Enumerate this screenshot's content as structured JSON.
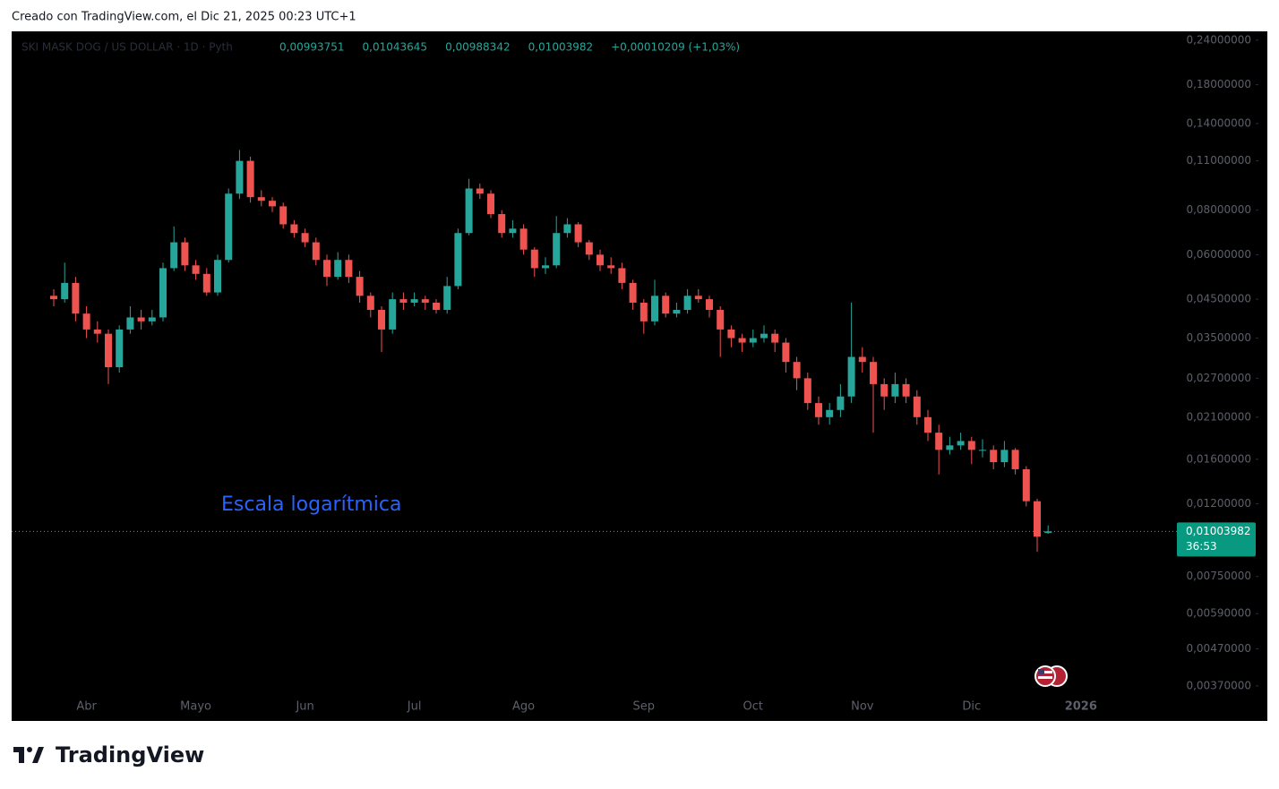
{
  "caption": "Creado con TradingView.com, el Dic 21, 2025 00:23 UTC+1",
  "brand": "TradingView",
  "header": {
    "symbol": "SKI MASK DOG / US DOLLAR · 1D · Pyth",
    "values": [
      "0,00993751",
      "0,01043645",
      "0,00988342",
      "0,01003982",
      "+0,00010209 (+1,03%)"
    ]
  },
  "chart_data": {
    "type": "candlestick",
    "log_scale": true,
    "annotation": "Escala logarítmica",
    "up_color": "#26a69a",
    "down_color": "#ef5350",
    "ylim": [
      0.00295,
      0.254
    ],
    "yticks": [
      {
        "value": 0.24,
        "label": "0,24000000"
      },
      {
        "value": 0.18,
        "label": "0,18000000"
      },
      {
        "value": 0.14,
        "label": "0,14000000"
      },
      {
        "value": 0.11,
        "label": "0,11000000"
      },
      {
        "value": 0.08,
        "label": "0,08000000"
      },
      {
        "value": 0.06,
        "label": "0,06000000"
      },
      {
        "value": 0.045,
        "label": "0,04500000"
      },
      {
        "value": 0.035,
        "label": "0,03500000"
      },
      {
        "value": 0.027,
        "label": "0,02700000"
      },
      {
        "value": 0.021,
        "label": "0,02100000"
      },
      {
        "value": 0.016,
        "label": "0,01600000"
      },
      {
        "value": 0.012,
        "label": "0,01200000"
      },
      {
        "value": 0.0075,
        "label": "0,00750000"
      },
      {
        "value": 0.0059,
        "label": "0,00590000"
      },
      {
        "value": 0.0047,
        "label": "0,00470000"
      },
      {
        "value": 0.0037,
        "label": "0,00370000"
      }
    ],
    "last_price": {
      "value": 0.01003982,
      "label": "0,01003982",
      "countdown": "36:53"
    },
    "categories": [
      null,
      null,
      null,
      "Abr",
      null,
      null,
      null,
      null,
      null,
      null,
      null,
      null,
      null,
      "Mayo",
      null,
      null,
      null,
      null,
      null,
      null,
      null,
      null,
      null,
      "Jun",
      null,
      null,
      null,
      null,
      null,
      null,
      null,
      null,
      null,
      "Jul",
      null,
      null,
      null,
      null,
      null,
      null,
      null,
      null,
      null,
      "Ago",
      null,
      null,
      null,
      null,
      null,
      null,
      null,
      null,
      null,
      null,
      "Sep",
      null,
      null,
      null,
      null,
      null,
      null,
      null,
      null,
      null,
      "Oct",
      null,
      null,
      null,
      null,
      null,
      null,
      null,
      null,
      null,
      "Nov",
      null,
      null,
      null,
      null,
      null,
      null,
      null,
      null,
      null,
      "Dic",
      null,
      null,
      null,
      null,
      null,
      null,
      null,
      null,
      null,
      "2026"
    ],
    "open": [
      0.046,
      0.045,
      0.05,
      0.041,
      0.037,
      0.036,
      0.029,
      0.037,
      0.04,
      0.039,
      0.04,
      0.055,
      0.065,
      0.056,
      0.053,
      0.047,
      0.058,
      0.089,
      0.11,
      0.087,
      0.085,
      0.082,
      0.073,
      0.069,
      0.065,
      0.058,
      0.052,
      0.058,
      0.052,
      0.046,
      0.042,
      0.037,
      0.045,
      0.044,
      0.045,
      0.044,
      0.042,
      0.049,
      0.069,
      0.092,
      0.089,
      0.078,
      0.069,
      0.071,
      0.062,
      0.055,
      0.056,
      0.069,
      0.073,
      0.065,
      0.06,
      0.056,
      0.055,
      0.05,
      0.044,
      0.039,
      0.046,
      0.041,
      0.042,
      0.046,
      0.045,
      0.042,
      0.037,
      0.035,
      0.034,
      0.035,
      0.036,
      0.034,
      0.03,
      0.027,
      0.023,
      0.021,
      0.022,
      0.024,
      0.031,
      0.03,
      0.026,
      0.024,
      0.026,
      0.024,
      0.021,
      0.019,
      0.017,
      0.0175,
      0.018,
      0.017,
      0.017,
      0.0157,
      0.017,
      0.015,
      0.0122,
      0.00993751,
      null,
      null,
      null
    ],
    "high": [
      0.048,
      0.057,
      0.052,
      0.043,
      0.039,
      0.037,
      0.038,
      0.043,
      0.042,
      0.042,
      0.057,
      0.072,
      0.067,
      0.058,
      0.055,
      0.06,
      0.092,
      0.118,
      0.113,
      0.091,
      0.087,
      0.084,
      0.075,
      0.071,
      0.067,
      0.06,
      0.061,
      0.06,
      0.054,
      0.047,
      0.043,
      0.047,
      0.047,
      0.047,
      0.046,
      0.045,
      0.052,
      0.071,
      0.098,
      0.095,
      0.091,
      0.08,
      0.075,
      0.073,
      0.063,
      0.059,
      0.077,
      0.076,
      0.074,
      0.066,
      0.062,
      0.059,
      0.057,
      0.051,
      0.045,
      0.051,
      0.047,
      0.044,
      0.048,
      0.048,
      0.046,
      0.043,
      0.038,
      0.036,
      0.037,
      0.038,
      0.037,
      0.035,
      0.031,
      0.028,
      0.024,
      0.023,
      0.026,
      0.044,
      0.033,
      0.031,
      0.027,
      0.028,
      0.027,
      0.025,
      0.022,
      0.02,
      0.0185,
      0.019,
      0.0185,
      0.0182,
      0.0175,
      0.018,
      0.0172,
      0.0153,
      0.0124,
      0.01043645,
      null,
      null,
      null
    ],
    "low": [
      0.043,
      0.044,
      0.039,
      0.035,
      0.034,
      0.026,
      0.028,
      0.036,
      0.037,
      0.038,
      0.039,
      0.054,
      0.054,
      0.051,
      0.046,
      0.046,
      0.057,
      0.086,
      0.084,
      0.082,
      0.079,
      0.071,
      0.067,
      0.063,
      0.056,
      0.049,
      0.051,
      0.05,
      0.044,
      0.04,
      0.032,
      0.036,
      0.042,
      0.043,
      0.042,
      0.041,
      0.041,
      0.048,
      0.068,
      0.086,
      0.076,
      0.067,
      0.067,
      0.06,
      0.052,
      0.053,
      0.055,
      0.067,
      0.063,
      0.058,
      0.054,
      0.053,
      0.048,
      0.042,
      0.036,
      0.038,
      0.04,
      0.04,
      0.041,
      0.044,
      0.04,
      0.031,
      0.033,
      0.032,
      0.033,
      0.034,
      0.032,
      0.028,
      0.025,
      0.022,
      0.02,
      0.02,
      0.021,
      0.023,
      0.028,
      0.019,
      0.022,
      0.023,
      0.023,
      0.02,
      0.018,
      0.0145,
      0.0165,
      0.017,
      0.0155,
      0.0162,
      0.015,
      0.0152,
      0.0145,
      0.0118,
      0.0088,
      0.00988342,
      null,
      null,
      null
    ],
    "close": [
      0.045,
      0.05,
      0.041,
      0.037,
      0.036,
      0.029,
      0.037,
      0.04,
      0.039,
      0.04,
      0.055,
      0.065,
      0.056,
      0.053,
      0.047,
      0.058,
      0.089,
      0.11,
      0.087,
      0.085,
      0.082,
      0.073,
      0.069,
      0.065,
      0.058,
      0.052,
      0.058,
      0.052,
      0.046,
      0.042,
      0.037,
      0.045,
      0.044,
      0.045,
      0.044,
      0.042,
      0.049,
      0.069,
      0.092,
      0.089,
      0.078,
      0.069,
      0.071,
      0.062,
      0.055,
      0.056,
      0.069,
      0.073,
      0.065,
      0.06,
      0.056,
      0.055,
      0.05,
      0.044,
      0.039,
      0.046,
      0.041,
      0.042,
      0.046,
      0.045,
      0.042,
      0.037,
      0.035,
      0.034,
      0.035,
      0.036,
      0.034,
      0.03,
      0.027,
      0.023,
      0.021,
      0.022,
      0.024,
      0.031,
      0.03,
      0.026,
      0.024,
      0.026,
      0.024,
      0.021,
      0.019,
      0.017,
      0.0175,
      0.018,
      0.017,
      0.017,
      0.0157,
      0.017,
      0.015,
      0.0122,
      0.0097,
      0.01003982,
      null,
      null,
      null
    ]
  }
}
